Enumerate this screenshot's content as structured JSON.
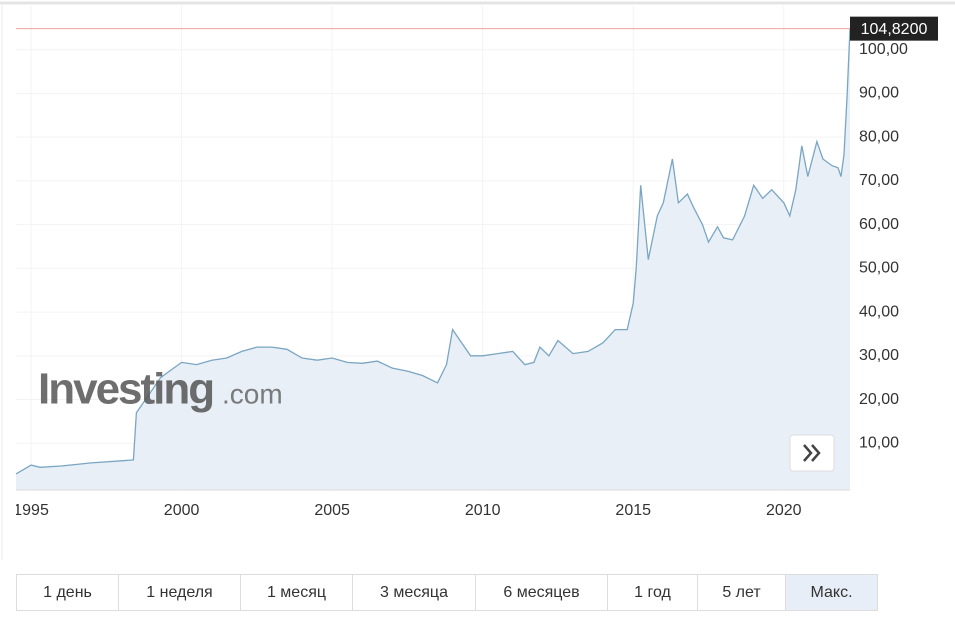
{
  "chart_data": {
    "type": "area",
    "x": [
      1994.5,
      1995,
      1995.3,
      1996,
      1997,
      1998,
      1998.4,
      1998.5,
      1998.9,
      1999.3,
      1999.7,
      2000,
      2000.5,
      2001,
      2001.5,
      2002,
      2002.5,
      2003,
      2003.5,
      2004,
      2004.5,
      2005,
      2005.5,
      2006,
      2006.5,
      2007,
      2007.5,
      2008,
      2008.5,
      2008.8,
      2009,
      2009.3,
      2009.6,
      2010,
      2010.5,
      2011,
      2011.4,
      2011.7,
      2011.9,
      2012.2,
      2012.5,
      2013,
      2013.5,
      2014,
      2014.4,
      2014.8,
      2015,
      2015.1,
      2015.25,
      2015.5,
      2015.8,
      2016,
      2016.3,
      2016.5,
      2016.8,
      2017,
      2017.3,
      2017.5,
      2017.8,
      2018,
      2018.3,
      2018.7,
      2019,
      2019.3,
      2019.6,
      2020,
      2020.2,
      2020.4,
      2020.6,
      2020.8,
      2021.1,
      2021.3,
      2021.6,
      2021.8,
      2021.9,
      2022,
      2022.1,
      2022.2
    ],
    "values": [
      3,
      5,
      4.5,
      4.8,
      5.5,
      6,
      6.2,
      17,
      21,
      25,
      27,
      28.5,
      28,
      29,
      29.5,
      31,
      32,
      32,
      31.5,
      29.5,
      29,
      29.5,
      28.5,
      28.3,
      28.8,
      27.2,
      26.5,
      25.5,
      23.8,
      28,
      36,
      33,
      30,
      30,
      30.5,
      31,
      28,
      28.5,
      32,
      30,
      33.5,
      30.5,
      31,
      33,
      36,
      36,
      42,
      50,
      69,
      52,
      62,
      65,
      75,
      65,
      67,
      64,
      60,
      56,
      59.5,
      57,
      56.5,
      62,
      69,
      66,
      68,
      65,
      62,
      68,
      78,
      71,
      79,
      75,
      73.5,
      73,
      71,
      76,
      89,
      104.82
    ],
    "color": "#7aa6c2",
    "fill": "#e8eff6",
    "xlim": [
      1994.5,
      2022.2
    ],
    "xticks": [
      1995,
      2000,
      2005,
      2010,
      2015,
      2020
    ],
    "ylim": [
      0,
      110
    ],
    "yticks": [
      {
        "value": 10,
        "label": "10,00"
      },
      {
        "value": 20,
        "label": "20,00"
      },
      {
        "value": 30,
        "label": "30,00"
      },
      {
        "value": 40,
        "label": "40,00"
      },
      {
        "value": 50,
        "label": "50,00"
      },
      {
        "value": 60,
        "label": "60,00"
      },
      {
        "value": 70,
        "label": "70,00"
      },
      {
        "value": 80,
        "label": "80,00"
      },
      {
        "value": 90,
        "label": "90,00"
      },
      {
        "value": 100,
        "label": "100,00"
      }
    ],
    "last_price": {
      "value": 104.82,
      "label": "104,8200"
    },
    "grid": true,
    "watermark": {
      "brand": "Investing",
      "suffix": ".com"
    }
  },
  "range_buttons": {
    "items": [
      "1 день",
      "1 неделя",
      "1 месяц",
      "3 месяца",
      "6 месяцев",
      "1 год",
      "5 лет",
      "Макс."
    ],
    "active": 7
  }
}
